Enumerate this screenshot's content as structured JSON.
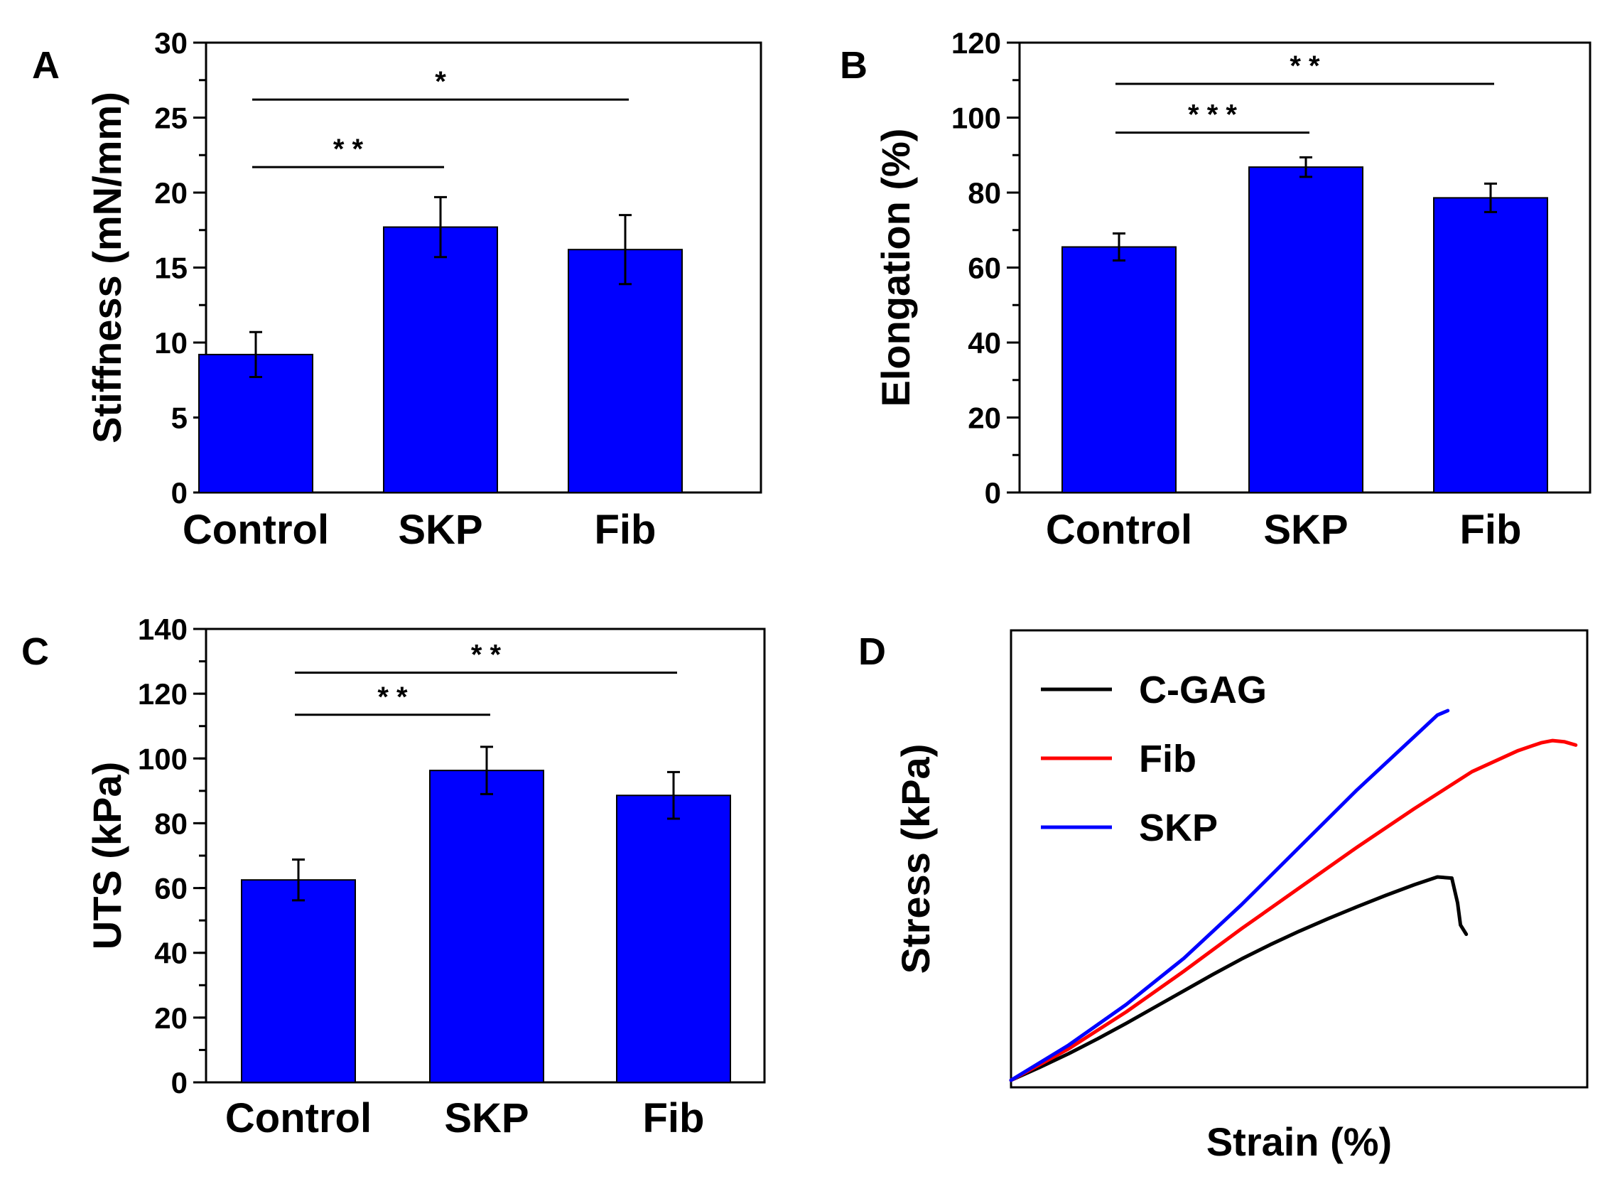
{
  "colors": {
    "bar": "#0000ff",
    "axis": "#000000",
    "line_cgag": "#000000",
    "line_fib": "#ff0000",
    "line_skp": "#0000ff"
  },
  "chart_data": [
    {
      "panel": "A",
      "type": "bar",
      "categories": [
        "Control",
        "SKP",
        "Fib"
      ],
      "values": [
        9.2,
        17.7,
        16.2
      ],
      "errors": [
        1.5,
        2.0,
        2.3
      ],
      "ylabel": "Stiffness (mN/mm)",
      "xlabel": "",
      "ylim": [
        0,
        30
      ],
      "yticks": [
        0,
        5,
        10,
        15,
        20,
        25,
        30
      ],
      "minor_step": 2.5,
      "significance": [
        {
          "from": 0,
          "to": 1,
          "y": 21.7,
          "label": "* *"
        },
        {
          "from": 0,
          "to": 2,
          "y": 26.2,
          "label": "*"
        }
      ]
    },
    {
      "panel": "B",
      "type": "bar",
      "categories": [
        "Control",
        "SKP",
        "Fib"
      ],
      "values": [
        65.5,
        86.8,
        78.6
      ],
      "errors": [
        3.6,
        2.6,
        3.8
      ],
      "ylabel": "Elongation (%)",
      "xlabel": "",
      "ylim": [
        0,
        120
      ],
      "yticks": [
        0,
        20,
        40,
        60,
        80,
        100,
        120
      ],
      "minor_step": 10,
      "significance": [
        {
          "from": 0,
          "to": 1,
          "y": 96,
          "label": "* * *"
        },
        {
          "from": 0,
          "to": 2,
          "y": 109,
          "label": "* *"
        }
      ]
    },
    {
      "panel": "C",
      "type": "bar",
      "categories": [
        "Control",
        "SKP",
        "Fib"
      ],
      "values": [
        62.5,
        96.3,
        88.6
      ],
      "errors": [
        6.3,
        7.3,
        7.2
      ],
      "ylabel": "UTS (kPa)",
      "xlabel": "",
      "ylim": [
        0,
        140
      ],
      "yticks": [
        0,
        20,
        40,
        60,
        80,
        100,
        120,
        140
      ],
      "minor_step": 10,
      "significance": [
        {
          "from": 0,
          "to": 1,
          "y": 113.5,
          "label": "* *"
        },
        {
          "from": 0,
          "to": 2,
          "y": 126.5,
          "label": "* *"
        }
      ]
    },
    {
      "panel": "D",
      "type": "line",
      "xlabel": "Strain (%)",
      "ylabel": "Stress (kPa)",
      "xlim": [
        0,
        100
      ],
      "ylim": [
        0,
        100
      ],
      "legend_position": "top-left",
      "series": [
        {
          "name": "C-GAG",
          "color": "#000000",
          "x": [
            0,
            5,
            10,
            15,
            20,
            25,
            30,
            35,
            40,
            45,
            50,
            55,
            60,
            65,
            70,
            74,
            76.5,
            77.5,
            78,
            79
          ],
          "y": [
            0,
            3.5,
            7.2,
            11.2,
            15.4,
            19.8,
            24.2,
            28.6,
            32.8,
            36.7,
            40.3,
            43.7,
            46.9,
            50,
            52.9,
            55,
            54.7,
            48,
            42,
            39.5
          ]
        },
        {
          "name": "Fib",
          "color": "#ff0000",
          "x": [
            0,
            10,
            20,
            30,
            40,
            50,
            60,
            70,
            80,
            88,
            92,
            94,
            96,
            98
          ],
          "y": [
            0,
            8.5,
            18.5,
            29.5,
            41,
            52,
            63,
            73.5,
            83.5,
            89.2,
            91.3,
            91.9,
            91.6,
            90.7
          ]
        },
        {
          "name": "SKP",
          "color": "#0000ff",
          "x": [
            0,
            10,
            20,
            30,
            40,
            50,
            60,
            70,
            74,
            75.8
          ],
          "y": [
            0,
            9.5,
            20.5,
            33,
            47.5,
            63,
            78.5,
            93,
            98.8,
            100
          ]
        }
      ]
    }
  ]
}
